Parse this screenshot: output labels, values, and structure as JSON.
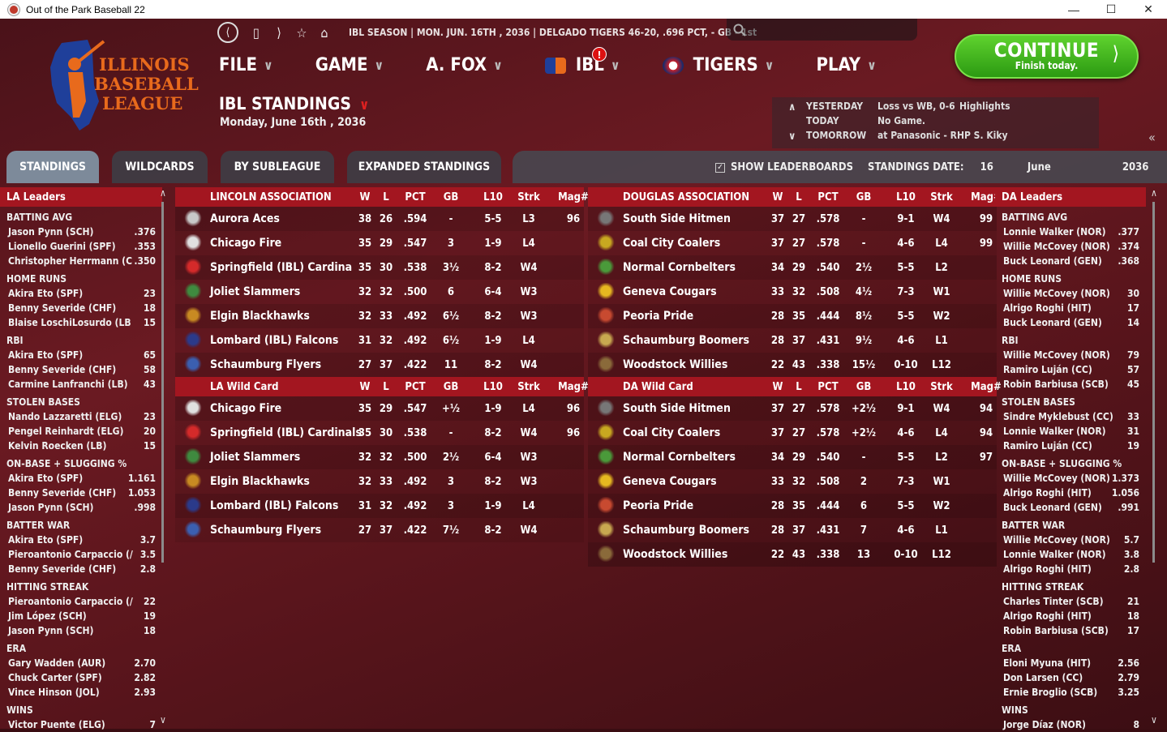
{
  "window": {
    "title": "Out of the Park Baseball 22"
  },
  "topbar": {
    "status": "IBL SEASON  |  MON. JUN. 16TH , 2036  |  DELGADO TIGERS  46-20, .696 PCT, - GB - 1st"
  },
  "menu": [
    {
      "label": "FILE"
    },
    {
      "label": "GAME"
    },
    {
      "label": "A. FOX"
    },
    {
      "label": "IBL",
      "alert": "!"
    },
    {
      "label": "TIGERS"
    },
    {
      "label": "PLAY"
    }
  ],
  "page": {
    "title": "IBL STANDINGS",
    "date": "Monday, June 16th , 2036"
  },
  "continue": {
    "label": "CONTINUE",
    "sub": "Finish today."
  },
  "schedule": {
    "yesterday_label": "YESTERDAY",
    "yesterday": "Loss vs WB, 0-6",
    "yesterday_link": "Highlights",
    "today_label": "TODAY",
    "today": "No Game.",
    "tomorrow_label": "TOMORROW",
    "tomorrow": "at Panasonic - RHP S. Kiky"
  },
  "tabs": [
    {
      "label": "STANDINGS"
    },
    {
      "label": "WILDCARDS"
    },
    {
      "label": "BY SUBLEAGUE"
    },
    {
      "label": "EXPANDED STANDINGS"
    }
  ],
  "options": {
    "show_leaderboards": "SHOW LEADERBOARDS",
    "standings_date": "STANDINGS DATE:",
    "day": "16",
    "month": "June",
    "year": "2036"
  },
  "columns": [
    "W",
    "L",
    "PCT",
    "GB",
    "L10",
    "Strk",
    "Mag#"
  ],
  "la_leaders": {
    "title": "LA Leaders",
    "cats": [
      {
        "name": "BATTING AVG",
        "rows": [
          [
            "Jason Pynn (SCH)",
            ".376"
          ],
          [
            "Lionello Guerini (SPF)",
            ".353"
          ],
          [
            "Christopher Herrmann (C",
            ".350"
          ]
        ]
      },
      {
        "name": "HOME RUNS",
        "rows": [
          [
            "Akira Eto (SPF)",
            "23"
          ],
          [
            "Benny Severide (CHF)",
            "18"
          ],
          [
            "Blaise LoschiLosurdo (LB",
            "15"
          ]
        ]
      },
      {
        "name": "RBI",
        "rows": [
          [
            "Akira Eto (SPF)",
            "65"
          ],
          [
            "Benny Severide (CHF)",
            "58"
          ],
          [
            "Carmine Lanfranchi (LB)",
            "43"
          ]
        ]
      },
      {
        "name": "STOLEN BASES",
        "rows": [
          [
            "Nando Lazzaretti (ELG)",
            "23"
          ],
          [
            "Pengel Reinhardt (ELG)",
            "20"
          ],
          [
            "Kelvin Roecken (LB)",
            "15"
          ]
        ]
      },
      {
        "name": "ON-BASE + SLUGGING %",
        "rows": [
          [
            "Akira Eto (SPF)",
            "1.161"
          ],
          [
            "Benny Severide (CHF)",
            "1.053"
          ],
          [
            "Jason Pynn (SCH)",
            ".998"
          ]
        ]
      },
      {
        "name": "BATTER WAR",
        "rows": [
          [
            "Akira Eto (SPF)",
            "3.7"
          ],
          [
            "Pieroantonio Carpaccio (/",
            "3.5"
          ],
          [
            "Benny Severide (CHF)",
            "2.8"
          ]
        ]
      },
      {
        "name": "HITTING STREAK",
        "rows": [
          [
            "Pieroantonio Carpaccio (/",
            "22"
          ],
          [
            "Jim López (SCH)",
            "19"
          ],
          [
            "Jason Pynn (SCH)",
            "18"
          ]
        ]
      },
      {
        "name": "ERA",
        "rows": [
          [
            "Gary Wadden (AUR)",
            "2.70"
          ],
          [
            "Chuck Carter (SPF)",
            "2.82"
          ],
          [
            "Vince Hinson (JOL)",
            "2.93"
          ]
        ]
      },
      {
        "name": "WINS",
        "rows": [
          [
            "Victor Puente (ELG)",
            "7"
          ]
        ]
      }
    ]
  },
  "da_leaders": {
    "title": "DA Leaders",
    "cats": [
      {
        "name": "BATTING AVG",
        "rows": [
          [
            "Lonnie Walker (NOR)",
            ".377"
          ],
          [
            "Willie McCovey (NOR)",
            ".374"
          ],
          [
            "Buck Leonard (GEN)",
            ".368"
          ]
        ]
      },
      {
        "name": "HOME RUNS",
        "rows": [
          [
            "Willie McCovey (NOR)",
            "30"
          ],
          [
            "Alrigo Roghi (HIT)",
            "17"
          ],
          [
            "Buck Leonard (GEN)",
            "14"
          ]
        ]
      },
      {
        "name": "RBI",
        "rows": [
          [
            "Willie McCovey (NOR)",
            "79"
          ],
          [
            "Ramiro Luján (CC)",
            "57"
          ],
          [
            "Robin Barbiusa (SCB)",
            "45"
          ]
        ]
      },
      {
        "name": "STOLEN BASES",
        "rows": [
          [
            "Sindre Myklebust (CC)",
            "33"
          ],
          [
            "Lonnie Walker (NOR)",
            "31"
          ],
          [
            "Ramiro Luján (CC)",
            "19"
          ]
        ]
      },
      {
        "name": "ON-BASE + SLUGGING %",
        "rows": [
          [
            "Willie McCovey (NOR)",
            "1.373"
          ],
          [
            "Alrigo Roghi (HIT)",
            "1.056"
          ],
          [
            "Buck Leonard (GEN)",
            ".991"
          ]
        ]
      },
      {
        "name": "BATTER WAR",
        "rows": [
          [
            "Willie McCovey (NOR)",
            "5.7"
          ],
          [
            "Lonnie Walker (NOR)",
            "3.8"
          ],
          [
            "Alrigo Roghi (HIT)",
            "2.8"
          ]
        ]
      },
      {
        "name": "HITTING STREAK",
        "rows": [
          [
            "Charles Tinter (SCB)",
            "21"
          ],
          [
            "Alrigo Roghi (HIT)",
            "18"
          ],
          [
            "Robin Barbiusa (SCB)",
            "17"
          ]
        ]
      },
      {
        "name": "ERA",
        "rows": [
          [
            "Eloni Myuna (HIT)",
            "2.56"
          ],
          [
            "Don Larsen (CC)",
            "2.79"
          ],
          [
            "Ernie Broglio (SCB)",
            "3.25"
          ]
        ]
      },
      {
        "name": "WINS",
        "rows": [
          [
            "Jorge Díaz (NOR)",
            "8"
          ]
        ]
      }
    ]
  },
  "tables": [
    {
      "title": "LINCOLN ASSOCIATION",
      "rows": [
        {
          "team": "Aurora Aces",
          "icon": "aces-icon",
          "color": "#c8c8c8",
          "v": [
            "38",
            "26",
            ".594",
            "-",
            "5-5",
            "L3",
            "96"
          ]
        },
        {
          "team": "Chicago Fire",
          "icon": "fire-icon",
          "color": "#e0e0e0",
          "v": [
            "35",
            "29",
            ".547",
            "3",
            "1-9",
            "L4",
            ""
          ]
        },
        {
          "team": "Springfield (IBL) Cardina",
          "icon": "cardinals-icon",
          "color": "#d42a2a",
          "v": [
            "35",
            "30",
            ".538",
            "3½",
            "8-2",
            "W4",
            ""
          ]
        },
        {
          "team": "Joliet Slammers",
          "icon": "slammers-icon",
          "color": "#3f8a3f",
          "v": [
            "32",
            "32",
            ".500",
            "6",
            "6-4",
            "W3",
            ""
          ]
        },
        {
          "team": "Elgin Blackhawks",
          "icon": "blackhawks-icon",
          "color": "#c88a22",
          "v": [
            "32",
            "33",
            ".492",
            "6½",
            "8-2",
            "W3",
            ""
          ]
        },
        {
          "team": "Lombard (IBL) Falcons",
          "icon": "falcons-icon",
          "color": "#2b3a8a",
          "v": [
            "31",
            "32",
            ".492",
            "6½",
            "1-9",
            "L4",
            ""
          ]
        },
        {
          "team": "Schaumburg Flyers",
          "icon": "flyers-icon",
          "color": "#3b5fb0",
          "v": [
            "27",
            "37",
            ".422",
            "11",
            "8-2",
            "W4",
            ""
          ]
        }
      ]
    },
    {
      "title": "DOUGLAS ASSOCIATION",
      "rows": [
        {
          "team": "South Side Hitmen",
          "icon": "hitmen-icon",
          "color": "#777",
          "v": [
            "37",
            "27",
            ".578",
            "-",
            "9-1",
            "W4",
            "99"
          ]
        },
        {
          "team": "Coal City Coalers",
          "icon": "coalers-icon",
          "color": "#c8a820",
          "v": [
            "37",
            "27",
            ".578",
            "-",
            "4-6",
            "L4",
            "99"
          ]
        },
        {
          "team": "Normal Cornbelters",
          "icon": "cornbelters-icon",
          "color": "#4a9a3a",
          "v": [
            "34",
            "29",
            ".540",
            "2½",
            "5-5",
            "L2",
            ""
          ]
        },
        {
          "team": "Geneva Cougars",
          "icon": "cougars-icon",
          "color": "#e6b820",
          "v": [
            "33",
            "32",
            ".508",
            "4½",
            "7-3",
            "W1",
            ""
          ]
        },
        {
          "team": "Peoria Pride",
          "icon": "pride-icon",
          "color": "#c84a30",
          "v": [
            "28",
            "35",
            ".444",
            "8½",
            "5-5",
            "W2",
            ""
          ]
        },
        {
          "team": "Schaumburg Boomers",
          "icon": "boomers-icon",
          "color": "#c8a850",
          "v": [
            "28",
            "37",
            ".431",
            "9½",
            "4-6",
            "L1",
            ""
          ]
        },
        {
          "team": "Woodstock Willies",
          "icon": "willies-icon",
          "color": "#8a6a3a",
          "v": [
            "22",
            "43",
            ".338",
            "15½",
            "0-10",
            "L12",
            ""
          ]
        }
      ]
    },
    {
      "title": "LA  Wild Card",
      "rows": [
        {
          "team": "Chicago Fire",
          "icon": "fire-icon",
          "color": "#e0e0e0",
          "v": [
            "35",
            "29",
            ".547",
            "+½",
            "1-9",
            "L4",
            "96"
          ]
        },
        {
          "team": "Springfield (IBL) Cardinals",
          "icon": "cardinals-icon",
          "color": "#d42a2a",
          "v": [
            "35",
            "30",
            ".538",
            "-",
            "8-2",
            "W4",
            "96"
          ]
        },
        {
          "team": "Joliet Slammers",
          "icon": "slammers-icon",
          "color": "#3f8a3f",
          "v": [
            "32",
            "32",
            ".500",
            "2½",
            "6-4",
            "W3",
            ""
          ]
        },
        {
          "team": "Elgin Blackhawks",
          "icon": "blackhawks-icon",
          "color": "#c88a22",
          "v": [
            "32",
            "33",
            ".492",
            "3",
            "8-2",
            "W3",
            ""
          ]
        },
        {
          "team": "Lombard (IBL) Falcons",
          "icon": "falcons-icon",
          "color": "#2b3a8a",
          "v": [
            "31",
            "32",
            ".492",
            "3",
            "1-9",
            "L4",
            ""
          ]
        },
        {
          "team": "Schaumburg Flyers",
          "icon": "flyers-icon",
          "color": "#3b5fb0",
          "v": [
            "27",
            "37",
            ".422",
            "7½",
            "8-2",
            "W4",
            ""
          ]
        }
      ]
    },
    {
      "title": "DA  Wild Card",
      "rows": [
        {
          "team": "South Side Hitmen",
          "icon": "hitmen-icon",
          "color": "#777",
          "v": [
            "37",
            "27",
            ".578",
            "+2½",
            "9-1",
            "W4",
            "94"
          ]
        },
        {
          "team": "Coal City Coalers",
          "icon": "coalers-icon",
          "color": "#c8a820",
          "v": [
            "37",
            "27",
            ".578",
            "+2½",
            "4-6",
            "L4",
            "94"
          ]
        },
        {
          "team": "Normal Cornbelters",
          "icon": "cornbelters-icon",
          "color": "#4a9a3a",
          "v": [
            "34",
            "29",
            ".540",
            "-",
            "5-5",
            "L2",
            "97"
          ]
        },
        {
          "team": "Geneva Cougars",
          "icon": "cougars-icon",
          "color": "#e6b820",
          "v": [
            "33",
            "32",
            ".508",
            "2",
            "7-3",
            "W1",
            ""
          ]
        },
        {
          "team": "Peoria Pride",
          "icon": "pride-icon",
          "color": "#c84a30",
          "v": [
            "28",
            "35",
            ".444",
            "6",
            "5-5",
            "W2",
            ""
          ]
        },
        {
          "team": "Schaumburg Boomers",
          "icon": "boomers-icon",
          "color": "#c8a850",
          "v": [
            "28",
            "37",
            ".431",
            "7",
            "4-6",
            "L1",
            ""
          ]
        },
        {
          "team": "Woodstock Willies",
          "icon": "willies-icon",
          "color": "#8a6a3a",
          "v": [
            "22",
            "43",
            ".338",
            "13",
            "0-10",
            "L12",
            ""
          ]
        }
      ]
    }
  ]
}
